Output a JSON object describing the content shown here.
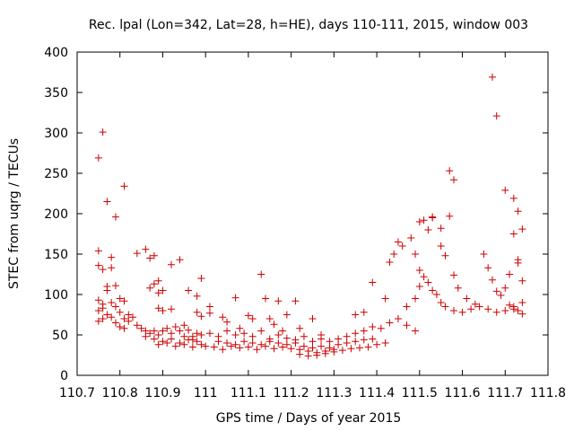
{
  "chart_data": {
    "type": "scatter",
    "title": "Rec. lpal (Lon=342, Lat=28, h=HE), days 110-111, 2015, window 003",
    "xlabel": "GPS time / Days of year 2015",
    "ylabel": "STEC from uqrg / TECUs",
    "xlim": [
      110.7,
      111.8
    ],
    "ylim": [
      0,
      400
    ],
    "x_ticks": [
      "110.7",
      "110.8",
      "110.9",
      "111",
      "111.1",
      "111.2",
      "111.3",
      "111.4",
      "111.5",
      "111.6",
      "111.7",
      "111.8"
    ],
    "y_ticks": [
      "0",
      "50",
      "100",
      "150",
      "200",
      "250",
      "300",
      "350",
      "400"
    ],
    "grid": false,
    "legend": "none",
    "marker": "+",
    "color": "#cc0000",
    "points": [
      [
        110.75,
        269
      ],
      [
        110.76,
        301
      ],
      [
        110.77,
        215
      ],
      [
        110.79,
        196
      ],
      [
        110.81,
        234
      ],
      [
        110.75,
        154
      ],
      [
        110.75,
        136
      ],
      [
        110.76,
        131
      ],
      [
        110.78,
        146
      ],
      [
        110.78,
        133
      ],
      [
        110.79,
        111
      ],
      [
        110.8,
        95
      ],
      [
        110.81,
        92
      ],
      [
        110.75,
        93
      ],
      [
        110.76,
        88
      ],
      [
        110.77,
        105
      ],
      [
        110.77,
        110
      ],
      [
        110.75,
        80
      ],
      [
        110.76,
        83
      ],
      [
        110.78,
        90
      ],
      [
        110.79,
        85
      ],
      [
        110.8,
        78
      ],
      [
        110.81,
        70
      ],
      [
        110.75,
        67
      ],
      [
        110.76,
        70
      ],
      [
        110.77,
        75
      ],
      [
        110.78,
        72
      ],
      [
        110.79,
        65
      ],
      [
        110.8,
        60
      ],
      [
        110.81,
        58
      ],
      [
        110.82,
        75
      ],
      [
        110.82,
        67
      ],
      [
        110.83,
        72
      ],
      [
        110.84,
        151
      ],
      [
        110.86,
        156
      ],
      [
        110.87,
        145
      ],
      [
        110.88,
        148
      ],
      [
        110.92,
        137
      ],
      [
        110.94,
        143
      ],
      [
        110.88,
        113
      ],
      [
        110.89,
        117
      ],
      [
        110.89,
        102
      ],
      [
        110.9,
        105
      ],
      [
        110.87,
        108
      ],
      [
        110.89,
        83
      ],
      [
        110.9,
        80
      ],
      [
        110.92,
        82
      ],
      [
        110.96,
        105
      ],
      [
        110.98,
        98
      ],
      [
        110.99,
        120
      ],
      [
        110.98,
        78
      ],
      [
        110.99,
        73
      ],
      [
        110.84,
        62
      ],
      [
        110.85,
        58
      ],
      [
        110.86,
        55
      ],
      [
        110.87,
        52
      ],
      [
        110.88,
        55
      ],
      [
        110.89,
        50
      ],
      [
        110.9,
        55
      ],
      [
        110.91,
        58
      ],
      [
        110.92,
        52
      ],
      [
        110.93,
        60
      ],
      [
        110.94,
        55
      ],
      [
        110.95,
        62
      ],
      [
        110.96,
        56
      ],
      [
        110.97,
        48
      ],
      [
        110.98,
        52
      ],
      [
        110.99,
        50
      ],
      [
        110.86,
        48
      ],
      [
        110.88,
        45
      ],
      [
        110.9,
        42
      ],
      [
        110.92,
        45
      ],
      [
        110.94,
        40
      ],
      [
        110.96,
        44
      ],
      [
        110.98,
        42
      ],
      [
        110.89,
        38
      ],
      [
        110.91,
        40
      ],
      [
        110.93,
        36
      ],
      [
        110.95,
        38
      ],
      [
        110.97,
        35
      ],
      [
        110.99,
        38
      ],
      [
        111.0,
        36
      ],
      [
        110.95,
        48
      ],
      [
        110.97,
        44
      ],
      [
        111.01,
        85
      ],
      [
        111.01,
        77
      ],
      [
        111.04,
        72
      ],
      [
        111.05,
        66
      ],
      [
        111.07,
        96
      ],
      [
        111.08,
        58
      ],
      [
        111.1,
        74
      ],
      [
        111.11,
        70
      ],
      [
        111.13,
        125
      ],
      [
        111.14,
        95
      ],
      [
        111.15,
        70
      ],
      [
        111.16,
        63
      ],
      [
        111.17,
        92
      ],
      [
        111.18,
        55
      ],
      [
        111.19,
        75
      ],
      [
        111.21,
        92
      ],
      [
        111.22,
        58
      ],
      [
        111.25,
        70
      ],
      [
        111.27,
        50
      ],
      [
        111.01,
        52
      ],
      [
        111.03,
        48
      ],
      [
        111.05,
        55
      ],
      [
        111.07,
        50
      ],
      [
        111.09,
        52
      ],
      [
        111.11,
        48
      ],
      [
        111.13,
        55
      ],
      [
        111.15,
        45
      ],
      [
        111.17,
        50
      ],
      [
        111.19,
        46
      ],
      [
        111.21,
        44
      ],
      [
        111.23,
        48
      ],
      [
        111.25,
        42
      ],
      [
        111.27,
        45
      ],
      [
        111.29,
        42
      ],
      [
        111.02,
        35
      ],
      [
        111.04,
        32
      ],
      [
        111.06,
        36
      ],
      [
        111.08,
        34
      ],
      [
        111.1,
        35
      ],
      [
        111.12,
        32
      ],
      [
        111.14,
        36
      ],
      [
        111.16,
        33
      ],
      [
        111.18,
        35
      ],
      [
        111.2,
        33
      ],
      [
        111.22,
        32
      ],
      [
        111.24,
        30
      ],
      [
        111.26,
        28
      ],
      [
        111.28,
        30
      ],
      [
        111.3,
        32
      ],
      [
        111.03,
        42
      ],
      [
        111.05,
        40
      ],
      [
        111.07,
        38
      ],
      [
        111.09,
        42
      ],
      [
        111.11,
        40
      ],
      [
        111.13,
        38
      ],
      [
        111.15,
        42
      ],
      [
        111.17,
        40
      ],
      [
        111.19,
        38
      ],
      [
        111.21,
        40
      ],
      [
        111.23,
        36
      ],
      [
        111.25,
        34
      ],
      [
        111.27,
        36
      ],
      [
        111.29,
        34
      ],
      [
        111.22,
        26
      ],
      [
        111.24,
        24
      ],
      [
        111.26,
        25
      ],
      [
        111.28,
        27
      ],
      [
        111.3,
        29
      ],
      [
        111.32,
        31
      ],
      [
        111.34,
        33
      ],
      [
        111.36,
        34
      ],
      [
        111.38,
        35
      ],
      [
        111.4,
        38
      ],
      [
        111.42,
        40
      ],
      [
        111.31,
        45
      ],
      [
        111.33,
        48
      ],
      [
        111.35,
        52
      ],
      [
        111.37,
        55
      ],
      [
        111.39,
        60
      ],
      [
        111.41,
        58
      ],
      [
        111.43,
        65
      ],
      [
        111.45,
        70
      ],
      [
        111.47,
        62
      ],
      [
        111.49,
        55
      ],
      [
        111.31,
        38
      ],
      [
        111.33,
        40
      ],
      [
        111.35,
        42
      ],
      [
        111.37,
        44
      ],
      [
        111.39,
        45
      ],
      [
        111.35,
        75
      ],
      [
        111.37,
        78
      ],
      [
        111.39,
        115
      ],
      [
        111.42,
        95
      ],
      [
        111.43,
        140
      ],
      [
        111.44,
        150
      ],
      [
        111.45,
        165
      ],
      [
        111.46,
        160
      ],
      [
        111.48,
        170
      ],
      [
        111.47,
        85
      ],
      [
        111.49,
        95
      ],
      [
        111.5,
        110
      ],
      [
        111.49,
        150
      ],
      [
        111.5,
        190
      ],
      [
        111.51,
        192
      ],
      [
        111.52,
        180
      ],
      [
        111.53,
        196
      ],
      [
        111.53,
        195
      ],
      [
        111.55,
        160
      ],
      [
        111.56,
        148
      ],
      [
        111.55,
        182
      ],
      [
        111.57,
        197
      ],
      [
        111.5,
        130
      ],
      [
        111.51,
        122
      ],
      [
        111.52,
        115
      ],
      [
        111.53,
        105
      ],
      [
        111.54,
        100
      ],
      [
        111.55,
        90
      ],
      [
        111.56,
        85
      ],
      [
        111.58,
        80
      ],
      [
        111.6,
        78
      ],
      [
        111.62,
        82
      ],
      [
        111.64,
        85
      ],
      [
        111.66,
        82
      ],
      [
        111.68,
        78
      ],
      [
        111.7,
        80
      ],
      [
        111.72,
        82
      ],
      [
        111.74,
        90
      ],
      [
        111.57,
        253
      ],
      [
        111.58,
        242
      ],
      [
        111.58,
        124
      ],
      [
        111.59,
        108
      ],
      [
        111.61,
        95
      ],
      [
        111.63,
        88
      ],
      [
        111.65,
        150
      ],
      [
        111.66,
        133
      ],
      [
        111.67,
        118
      ],
      [
        111.68,
        104
      ],
      [
        111.69,
        99
      ],
      [
        111.7,
        108
      ],
      [
        111.71,
        125
      ],
      [
        111.73,
        139
      ],
      [
        111.73,
        143
      ],
      [
        111.74,
        117
      ],
      [
        111.74,
        181
      ],
      [
        111.67,
        369
      ],
      [
        111.68,
        321
      ],
      [
        111.7,
        229
      ],
      [
        111.72,
        219
      ],
      [
        111.72,
        175
      ],
      [
        111.73,
        203
      ],
      [
        111.71,
        87
      ],
      [
        111.72,
        85
      ],
      [
        111.73,
        80
      ],
      [
        111.74,
        76
      ]
    ]
  }
}
